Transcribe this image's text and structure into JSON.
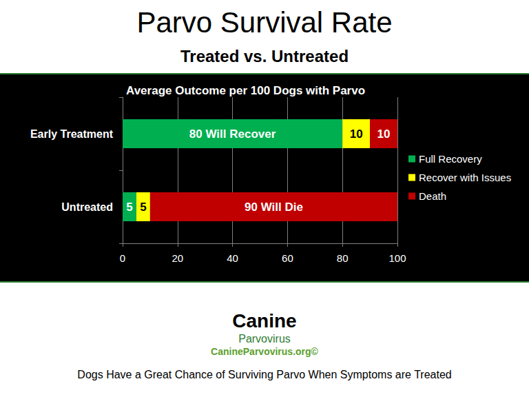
{
  "chart_data": {
    "type": "bar",
    "title": "Parvo Survival Rate",
    "subtitle": "Treated vs. Untreated",
    "annotations": [
      "Average Outcome per 100 Dogs with Parvo",
      "Canine",
      "Parvovirus",
      "CanineParvovirus.org©",
      "Dogs Have a Great Chance of Surviving Parvo When Symptoms are Treated"
    ],
    "categories": [
      "Early Treatment",
      "Untreated"
    ],
    "series": [
      {
        "name": "Full Recovery",
        "color": "#00b050",
        "values": [
          80,
          5
        ],
        "value_labels": [
          "80 Will Recover",
          "5"
        ]
      },
      {
        "name": "Recover with Issues",
        "color": "#ffff00",
        "values": [
          10,
          5
        ]
      },
      {
        "name": "Death",
        "color": "#c00000",
        "values": [
          10,
          90
        ],
        "value_labels": [
          "10",
          "90 Will Die"
        ]
      }
    ],
    "xlim": [
      0,
      100
    ],
    "xticks": [
      0,
      20,
      40,
      60,
      80,
      100
    ],
    "grid": true,
    "legend": "right",
    "orientation": "horizontal",
    "stacked": true,
    "data_labels": true
  }
}
